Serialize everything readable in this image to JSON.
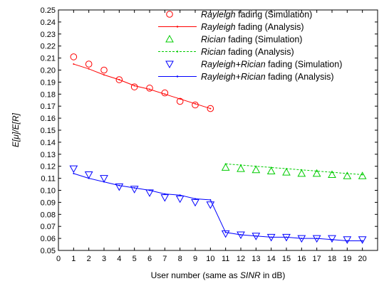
{
  "chart_data": {
    "type": "scatter",
    "xlabel": {
      "prefix": "User number (same as ",
      "italic": "SINR",
      "suffix": " in dB)"
    },
    "ylabel": "E[μ]/E[R]",
    "xlim": [
      0,
      21
    ],
    "ylim": [
      0.05,
      0.25
    ],
    "xticks": [
      0,
      1,
      2,
      3,
      4,
      5,
      6,
      7,
      8,
      9,
      10,
      11,
      12,
      13,
      14,
      15,
      16,
      17,
      18,
      19,
      20
    ],
    "yticks": [
      0.05,
      0.06,
      0.07,
      0.08,
      0.09,
      0.1,
      0.11,
      0.12,
      0.13,
      0.14,
      0.15,
      0.16,
      0.17,
      0.18,
      0.19,
      0.2,
      0.21,
      0.22,
      0.23,
      0.24,
      0.25
    ],
    "ytick_labels": [
      "0.05",
      "0.06",
      "0.07",
      "0.08",
      "0.09",
      "0.10",
      "0.11",
      "0.12",
      "0.13",
      "0.14",
      "0.15",
      "0.16",
      "0.17",
      "0.18",
      "0.19",
      "0.20",
      "0.21",
      "0.22",
      "0.23",
      "0.24",
      "0.25"
    ],
    "legend_position": "top-right",
    "series": [
      {
        "key": "rayleigh-sim",
        "name_italic": "Rayleigh",
        "name_rest": " fading (Simulation)",
        "kind": "markers",
        "marker": "circle",
        "color": "#ff0000",
        "x": [
          1,
          2,
          3,
          4,
          5,
          6,
          7,
          8,
          9,
          10
        ],
        "y": [
          0.211,
          0.205,
          0.2,
          0.192,
          0.186,
          0.185,
          0.181,
          0.174,
          0.171,
          0.168
        ]
      },
      {
        "key": "rayleigh-ana",
        "name_italic": "Rayleigh",
        "name_rest": " fading (Analysis)",
        "kind": "line",
        "dash": "solid",
        "color": "#ff0000",
        "x": [
          1,
          2,
          3,
          4,
          5,
          6,
          7,
          8,
          9,
          10
        ],
        "y": [
          0.205,
          0.201,
          0.196,
          0.192,
          0.187,
          0.184,
          0.18,
          0.176,
          0.172,
          0.168
        ]
      },
      {
        "key": "rician-sim",
        "name_italic": "Rician",
        "name_rest": " fading (Simulation)",
        "kind": "markers",
        "marker": "triangle-up",
        "color": "#00cc00",
        "x": [
          11,
          12,
          13,
          14,
          15,
          16,
          17,
          18,
          19,
          20
        ],
        "y": [
          0.119,
          0.118,
          0.117,
          0.116,
          0.115,
          0.114,
          0.114,
          0.113,
          0.112,
          0.112
        ]
      },
      {
        "key": "rician-ana",
        "name_italic": "Rician",
        "name_rest": " fading (Analysis)",
        "kind": "line",
        "dash": "dashed",
        "color": "#00cc00",
        "x": [
          11,
          12,
          13,
          14,
          15,
          16,
          17,
          18,
          19,
          20
        ],
        "y": [
          0.122,
          0.121,
          0.12,
          0.119,
          0.118,
          0.117,
          0.116,
          0.115,
          0.114,
          0.113
        ]
      },
      {
        "key": "combined-sim",
        "name_italic": "Rayleigh+Rician",
        "name_rest": " fading (Simulation)",
        "kind": "markers",
        "marker": "triangle-down",
        "color": "#0000ff",
        "x": [
          1,
          2,
          3,
          4,
          5,
          6,
          7,
          8,
          9,
          10,
          11,
          12,
          13,
          14,
          15,
          16,
          17,
          18,
          19,
          20
        ],
        "y": [
          0.118,
          0.113,
          0.11,
          0.103,
          0.101,
          0.098,
          0.094,
          0.093,
          0.09,
          0.088,
          0.064,
          0.063,
          0.062,
          0.061,
          0.061,
          0.06,
          0.06,
          0.06,
          0.059,
          0.059
        ]
      },
      {
        "key": "combined-ana",
        "name_italic": "Rayleigh+Rician",
        "name_rest": " fading (Analysis)",
        "kind": "line",
        "dash": "solid",
        "color": "#0000ff",
        "x": [
          1,
          2,
          3,
          4,
          5,
          6,
          7,
          8,
          9,
          10,
          11,
          12,
          13,
          14,
          15,
          16,
          17,
          18,
          19,
          20
        ],
        "y": [
          0.114,
          0.11,
          0.107,
          0.104,
          0.102,
          0.1,
          0.097,
          0.096,
          0.093,
          0.092,
          0.065,
          0.063,
          0.062,
          0.061,
          0.061,
          0.06,
          0.06,
          0.059,
          0.058,
          0.058
        ]
      }
    ]
  }
}
